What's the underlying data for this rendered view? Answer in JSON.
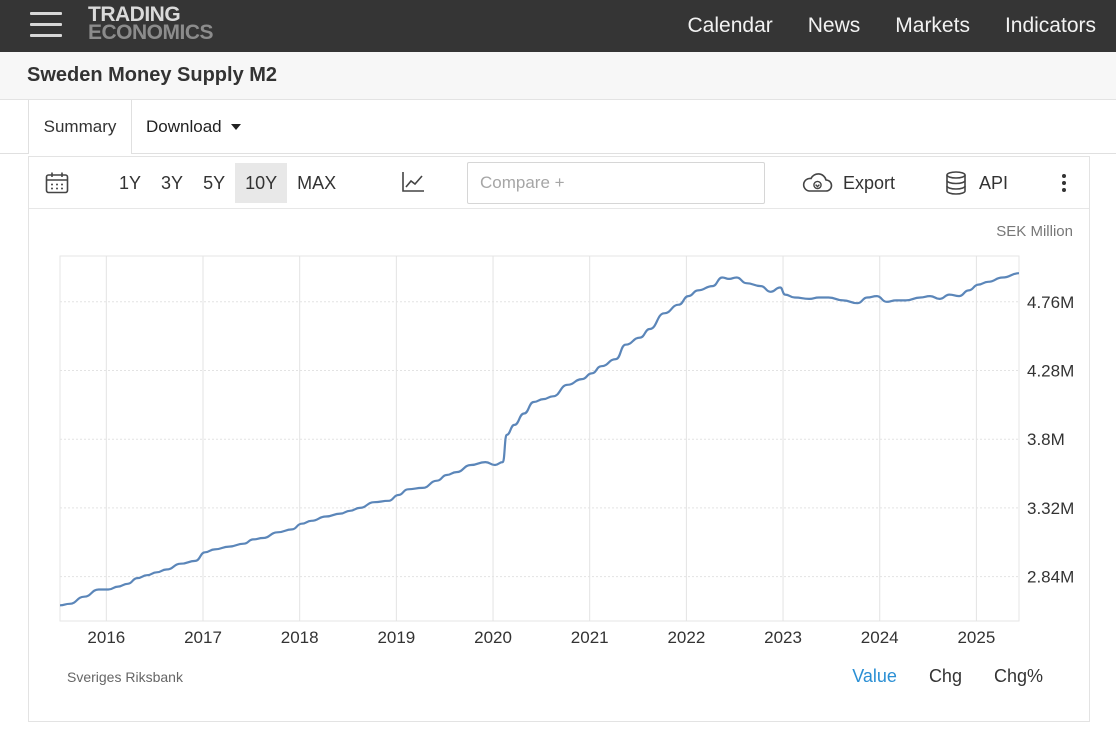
{
  "header": {
    "logo_line1": "TRADING",
    "logo_line2": "ECONOMICS",
    "nav": [
      "Calendar",
      "News",
      "Markets",
      "Indicators"
    ]
  },
  "page": {
    "title": "Sweden Money Supply M2"
  },
  "tabs": {
    "summary": "Summary",
    "download": "Download"
  },
  "toolbar": {
    "ranges": [
      "1Y",
      "3Y",
      "5Y",
      "10Y",
      "MAX"
    ],
    "active_range": "10Y",
    "compare_placeholder": "Compare +",
    "export_label": "Export",
    "api_label": "API"
  },
  "footer": {
    "source": "Sveriges Riksbank",
    "modes": [
      "Value",
      "Chg",
      "Chg%"
    ],
    "active_mode": "Value"
  },
  "colors": {
    "line": "#5b86b9",
    "active_mode": "#2a8fd4",
    "header_bg": "#353535"
  },
  "chart_data": {
    "type": "line",
    "unit": "SEK Million",
    "xlim": [
      2015.5,
      2025.42
    ],
    "ylim": [
      2530000,
      5080000
    ],
    "x_ticks": [
      2016,
      2017,
      2018,
      2019,
      2020,
      2021,
      2022,
      2023,
      2024,
      2025
    ],
    "y_ticks": [
      2840000,
      3320000,
      3800000,
      4280000,
      4760000
    ],
    "y_tick_labels": [
      "2.84M",
      "3.32M",
      "3.8M",
      "4.28M",
      "4.76M"
    ],
    "grid": true,
    "series": [
      {
        "x": [
          2015.5,
          2015.6,
          2015.75,
          2015.9,
          2016.0,
          2016.1,
          2016.2,
          2016.3,
          2016.4,
          2016.5,
          2016.6,
          2016.75,
          2016.9,
          2017.0,
          2017.1,
          2017.25,
          2017.4,
          2017.5,
          2017.6,
          2017.75,
          2017.9,
          2018.0,
          2018.1,
          2018.25,
          2018.4,
          2018.5,
          2018.6,
          2018.75,
          2018.9,
          2019.0,
          2019.1,
          2019.25,
          2019.4,
          2019.5,
          2019.6,
          2019.75,
          2019.9,
          2020.0,
          2020.08,
          2020.12,
          2020.2,
          2020.3,
          2020.4,
          2020.5,
          2020.6,
          2020.75,
          2020.9,
          2021.0,
          2021.1,
          2021.25,
          2021.35,
          2021.5,
          2021.6,
          2021.75,
          2021.9,
          2022.0,
          2022.1,
          2022.25,
          2022.35,
          2022.42,
          2022.5,
          2022.6,
          2022.75,
          2022.85,
          2022.95,
          2023.0,
          2023.1,
          2023.25,
          2023.35,
          2023.45,
          2023.6,
          2023.75,
          2023.85,
          2023.95,
          2024.05,
          2024.15,
          2024.25,
          2024.4,
          2024.5,
          2024.6,
          2024.7,
          2024.8,
          2024.9,
          2025.0,
          2025.1,
          2025.25,
          2025.42
        ],
        "values": [
          2640000,
          2650000,
          2700000,
          2750000,
          2750000,
          2770000,
          2790000,
          2830000,
          2850000,
          2870000,
          2890000,
          2930000,
          2950000,
          3010000,
          3030000,
          3050000,
          3070000,
          3100000,
          3110000,
          3150000,
          3170000,
          3210000,
          3230000,
          3260000,
          3280000,
          3300000,
          3320000,
          3360000,
          3370000,
          3410000,
          3450000,
          3460000,
          3510000,
          3550000,
          3570000,
          3620000,
          3640000,
          3620000,
          3640000,
          3830000,
          3900000,
          3980000,
          4060000,
          4080000,
          4100000,
          4180000,
          4220000,
          4260000,
          4310000,
          4360000,
          4460000,
          4510000,
          4570000,
          4680000,
          4740000,
          4800000,
          4840000,
          4870000,
          4930000,
          4920000,
          4930000,
          4890000,
          4870000,
          4830000,
          4860000,
          4810000,
          4790000,
          4780000,
          4790000,
          4790000,
          4770000,
          4750000,
          4790000,
          4800000,
          4760000,
          4770000,
          4770000,
          4790000,
          4800000,
          4780000,
          4810000,
          4800000,
          4840000,
          4880000,
          4900000,
          4930000,
          4960000
        ]
      }
    ]
  }
}
